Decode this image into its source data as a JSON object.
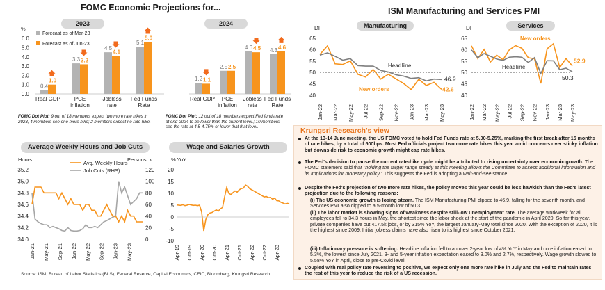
{
  "fomc": {
    "title": "FOMC Economic Projections for...",
    "y_unit": "%",
    "legend": [
      "Forecast as of Mar-23",
      "Forecast as of Jun-23"
    ],
    "note_2023": [
      "FOMC Dot Plot:",
      " 9 out of 18 members expect two more rate hikes in",
      "2023, 4 members see one more hike; 2 members expect no rate hike."
    ],
    "note_2024": [
      "FOMC Dot Plot:",
      " 12 out of 18 members expect Fed funds rate",
      "at end-2024 to be lower than the current level.; 10 members",
      "see the rate at 4.5-4.75% or lower that that level."
    ]
  },
  "ism": {
    "title": "ISM Manufacturing and Services PMI",
    "y_unit": "DI"
  },
  "hours": {
    "title": "Average Weekly Hours and Job Cuts",
    "left_unit": "Hours",
    "right_unit": "Persons, k"
  },
  "wages": {
    "title": "Wage and Salaries Growth",
    "y_unit": "% YoY"
  },
  "view": {
    "title": "Krungsri Research's view",
    "p1": "At the 13-14 June meeting, the US FOMC voted to hold Fed Funds rate at 5.00-5.25%, marking the first break after 15 months of rate hikes, by a total of 500bps. Most Fed officials project two more rate hikes this year amid concerns over sticky inflation but downside risk to economic growth might cap rate hikes.",
    "p2a": "The Fed's decision to pause the current rate-hike cycle might be attributed to rising uncertainty over economic growth.",
    "p2b": " The FOMC statement said that ",
    "p2c": "\"holding the target range steady at this meeting allows the Committee to assess additional information and its implications for monetary policy.\"",
    "p2d": " This suggests the Fed is adopting a ",
    "p2e": "wait-and-see",
    "p2f": " stance.",
    "p3": "Despite the Fed's projection of two more rate hikes, the policy moves this year could be less hawkish than the Fed's latest projection due to the following reasons:",
    "i_a": "(i) The US economic growth is losing steam.",
    "i_b": " The ISM Manufacturing PMI dipped to 46.9, falling for the seventh month, and Services PMI also dipped to a 5-month low of 50.3.",
    "ii_a": "(ii) The labor market is showing signs of weakness despite still-low unemployment rate.",
    "ii_b": " The average workweek for all employees fell to 34.3 hours in May, the shortest since the labor shock at the start of the pandemic in April 2020. So far this year, private companies have cut 417.5k jobs, or by 315% YoY, the largest January-May total since 2020. With the exception of 2020, it is the highest since 2009. Initial jobless claims have also risen to its highest since October 2021.",
    "iii_a": "(iii) Inflationary pressure is softening.",
    "iii_b": " Headline inflation fell to an over 2-year low of 4% YoY in May and core inflation eased to 5.3%, the lowest since July 2021. 3- and 5-year inflation expectation eased to 3.0% and 2.7%, respectively. Wage growth slowed to 5.58% YoY in April, close to pre-Covid level.",
    "p4": "Coupled with real policy rate reversing to positive, we expect only one more rate hike in July and the Fed to maintain rates the rest of this year to reduce the risk of a US recession."
  },
  "source": "Source: ISM, Bureau of Labor Statistics (BLS), Federal Reserve, Capital Economics, CEIC, Bloomberg, Krungsri Research",
  "colors": {
    "orange": "#f7941d",
    "mar": "#b3b3b3",
    "dark": "#333333",
    "arrow": "#f26b1d"
  },
  "chart_data": [
    {
      "type": "bar",
      "title": "2023",
      "categories": [
        "Real GDP",
        "PCE inflation",
        "Jobless rate",
        "Fed Funds Rate"
      ],
      "series": [
        {
          "name": "Forecast as of Mar-23",
          "values": [
            0.4,
            3.3,
            4.5,
            5.1
          ]
        },
        {
          "name": "Forecast as of Jun-23",
          "values": [
            1.0,
            3.2,
            4.1,
            5.6
          ]
        }
      ],
      "ylim": [
        0,
        6
      ],
      "yticks": [
        "0.0",
        "1.0",
        "2.0",
        "3.0",
        "4.0",
        "5.0",
        "6.0"
      ]
    },
    {
      "type": "bar",
      "title": "2024",
      "categories": [
        "Real GDP",
        "PCE inflation",
        "Jobless rate",
        "Fed Funds Rate"
      ],
      "series": [
        {
          "name": "Forecast as of Mar-23",
          "values": [
            1.2,
            2.5,
            4.6,
            4.3
          ]
        },
        {
          "name": "Forecast as of Jun-23",
          "values": [
            1.1,
            2.5,
            4.5,
            4.6
          ]
        }
      ],
      "ylim": [
        0,
        6
      ]
    },
    {
      "type": "line",
      "title": "Manufacturing",
      "x": [
        "Jan-22",
        "Feb-22",
        "Mar-22",
        "Apr-22",
        "May-22",
        "Jun-22",
        "Jul-22",
        "Aug-22",
        "Sep-22",
        "Oct-22",
        "Nov-22",
        "Dec-22",
        "Jan-23",
        "Feb-23",
        "Mar-23",
        "Apr-23",
        "May-23"
      ],
      "xticks": [
        "Jan-22",
        "Mar-22",
        "May-22",
        "Jul-22",
        "Sep-22",
        "Nov-22",
        "Jan-23",
        "Mar-23",
        "May-23"
      ],
      "series": [
        {
          "name": "New orders",
          "values": [
            57.9,
            61.7,
            53.8,
            53.5,
            55.1,
            49.2,
            48.0,
            51.3,
            47.1,
            49.2,
            47.2,
            45.2,
            42.5,
            47.0,
            44.3,
            45.7,
            42.6
          ]
        },
        {
          "name": "Headline",
          "values": [
            57.6,
            58.6,
            57.1,
            55.4,
            56.1,
            53.0,
            52.8,
            52.8,
            50.9,
            50.2,
            49.0,
            48.4,
            47.4,
            47.7,
            46.3,
            47.1,
            46.9
          ]
        }
      ],
      "ylim": [
        40,
        65
      ],
      "yticks": [
        40,
        45,
        50,
        55,
        60,
        65
      ],
      "labels": [
        "Headline",
        "46.9",
        "New orders",
        "42.6"
      ]
    },
    {
      "type": "line",
      "title": "Services",
      "x": [
        "Jan-22",
        "Feb-22",
        "Mar-22",
        "Apr-22",
        "May-22",
        "Jun-22",
        "Jul-22",
        "Aug-22",
        "Sep-22",
        "Oct-22",
        "Nov-22",
        "Dec-22",
        "Jan-23",
        "Feb-23",
        "Mar-23",
        "Apr-23",
        "May-23"
      ],
      "xticks": [
        "Jan-22",
        "Mar-22",
        "May-22",
        "Jul-22",
        "Sep-22",
        "Nov-22",
        "Jan-23",
        "Mar-23",
        "May-23"
      ],
      "series": [
        {
          "name": "New orders",
          "values": [
            61.7,
            56.1,
            60.1,
            54.6,
            57.6,
            55.6,
            59.9,
            61.8,
            60.6,
            56.5,
            56.0,
            45.2,
            60.4,
            62.6,
            52.2,
            56.1,
            52.9
          ]
        },
        {
          "name": "Headline",
          "values": [
            59.9,
            56.5,
            58.3,
            57.1,
            55.9,
            55.3,
            56.7,
            56.9,
            56.7,
            54.4,
            56.5,
            49.6,
            55.2,
            55.1,
            51.2,
            51.9,
            50.3
          ]
        }
      ],
      "ylim": [
        40,
        65
      ],
      "yticks": [
        40,
        45,
        50,
        55,
        60,
        65
      ],
      "labels": [
        "New orders",
        "52.9",
        "Headline",
        "50.3"
      ]
    },
    {
      "type": "line",
      "title": "Average Weekly Hours and Job Cuts",
      "xticks": [
        "Jan-21",
        "May-21",
        "Sep-21",
        "Jan-22",
        "May-22",
        "Sep-22",
        "Jan-23",
        "May-23"
      ],
      "series": [
        {
          "name": "Avg. Weekly Hours",
          "axis": "left",
          "values": [
            34.6,
            34.9,
            34.9,
            34.9,
            34.8,
            34.8,
            34.8,
            34.8,
            34.8,
            34.7,
            34.8,
            34.7,
            34.6,
            34.7,
            34.6,
            34.6,
            34.6,
            34.5,
            34.6,
            34.6,
            34.5,
            34.5,
            34.4,
            34.4,
            34.5,
            34.6,
            34.5,
            34.4,
            34.4,
            34.3,
            34.4,
            34.3,
            34.5,
            34.4,
            34.4,
            34.3,
            34.3,
            34.3
          ]
        },
        {
          "name": "Job Cuts (RHS)",
          "axis": "right",
          "values": [
            80,
            35,
            30,
            27,
            25,
            25,
            20,
            22,
            20,
            18,
            15,
            14,
            20,
            15,
            14,
            14,
            15,
            18,
            25,
            20,
            20,
            22,
            20,
            25,
            30,
            32,
            35,
            38,
            40,
            100,
            80,
            90,
            75,
            60,
            65,
            70,
            80,
            80
          ]
        }
      ],
      "ylim_left": [
        34.0,
        35.2
      ],
      "yticks_left": [
        "34.0",
        "34.2",
        "34.4",
        "34.6",
        "34.8",
        "35.0",
        "35.2"
      ],
      "ylim_right": [
        0,
        120
      ],
      "yticks_right": [
        0,
        20,
        40,
        60,
        80,
        100,
        120
      ]
    },
    {
      "type": "line",
      "title": "Wage and Salaries Growth",
      "xticks": [
        "Apr-19",
        "Oct-19",
        "Apr-20",
        "Oct-20",
        "Apr-21",
        "Oct-21",
        "Apr-22",
        "Oct-22",
        "Apr-23"
      ],
      "series": [
        {
          "name": "Wage and Salaries Growth",
          "values": [
            5.1,
            5.0,
            4.9,
            5.2,
            4.8,
            5.0,
            5.3,
            5.1,
            4.9,
            5.0,
            4.8,
            5.0,
            2.0,
            -5.9,
            -1.0,
            1.0,
            1.7,
            1.9,
            2.5,
            3.0,
            2.5,
            3.5,
            4.0,
            8.5,
            12.5,
            10.0,
            9.5,
            10.3,
            11.0,
            10.5,
            11.5,
            12.0,
            12.2,
            13.5,
            13.0,
            12.0,
            11.5,
            11.0,
            10.5,
            10.0,
            9.5,
            9.0,
            8.5,
            8.7,
            8.2,
            8.3,
            7.5,
            8.0,
            6.9,
            6.8,
            6.2,
            5.9,
            5.5,
            5.8,
            5.58
          ]
        }
      ],
      "ylim": [
        -10,
        20
      ],
      "yticks": [
        "20",
        "15",
        "10",
        "5",
        "0",
        "-5",
        "-10"
      ]
    }
  ]
}
